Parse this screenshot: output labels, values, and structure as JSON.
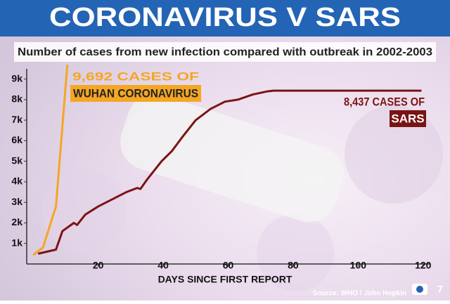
{
  "chart_data": {
    "type": "line",
    "title": "CORONAVIRUS V SARS",
    "subtitle": "Number of cases from new infection compared with outbreak in 2002-2003",
    "x_label": "DAYS SINCE FIRST REPORT",
    "source": "Source: WHO / John Hopkin",
    "xlim": [
      -2,
      122
    ],
    "ylim": [
      0,
      9500
    ],
    "xticks": [
      20,
      40,
      60,
      80,
      100,
      120
    ],
    "yticks": [
      {
        "value": 1000,
        "label": "1k"
      },
      {
        "value": 2000,
        "label": "2k"
      },
      {
        "value": 3000,
        "label": "3k"
      },
      {
        "value": 4000,
        "label": "4k"
      },
      {
        "value": 5000,
        "label": "5k"
      },
      {
        "value": 6000,
        "label": "6k"
      },
      {
        "value": 7000,
        "label": "7k"
      },
      {
        "value": 8000,
        "label": "8k"
      },
      {
        "value": 9000,
        "label": "9k"
      }
    ],
    "grid": false,
    "series": [
      {
        "color": "#f5a623",
        "x": [
          0,
          3,
          7,
          10.5
        ],
        "values": [
          440,
          800,
          2800,
          9692
        ],
        "annotation": [
          "9,692 CASES OF",
          "WUHAN CORONAVIRUS"
        ]
      },
      {
        "color": "#7a1414",
        "x": [
          1.5,
          7,
          9,
          12.5,
          13.5,
          16,
          20,
          28.7,
          32,
          33,
          35,
          39.5,
          42.7,
          46,
          50,
          54.6,
          59,
          63,
          67.6,
          72,
          74,
          119.5
        ],
        "values": [
          500,
          700,
          1600,
          2000,
          1900,
          2400,
          2800,
          3500,
          3700,
          3650,
          4100,
          5000,
          5500,
          6200,
          7000,
          7550,
          7900,
          8000,
          8250,
          8400,
          8437,
          8437
        ],
        "annotation": [
          "8,437 CASES OF",
          "SARS"
        ]
      }
    ]
  },
  "photo_count": "7"
}
